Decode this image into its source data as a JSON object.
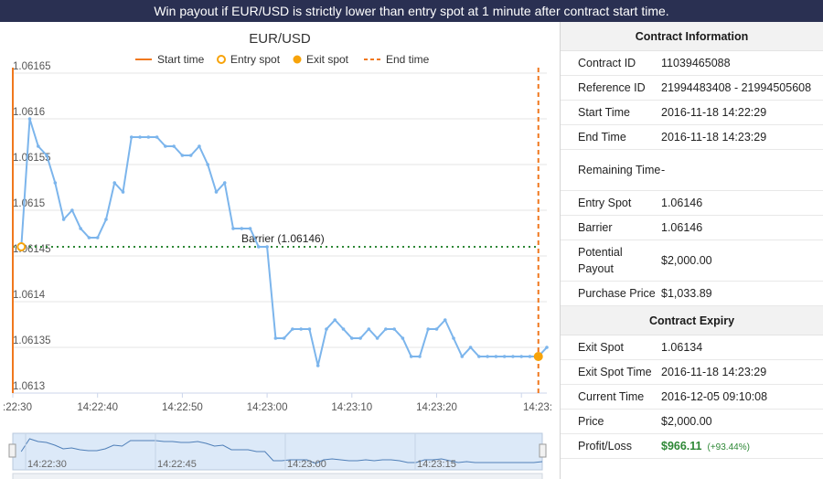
{
  "banner": {
    "text": "Win payout if EUR/USD is strictly lower than entry spot at 1 minute after contract start time."
  },
  "chart_data": {
    "type": "line",
    "title": "EUR/USD",
    "legend": [
      "Start time",
      "Entry spot",
      "Exit spot",
      "End time"
    ],
    "legend_position": "top",
    "xlabel": "",
    "ylabel": "",
    "x_tick_labels": [
      ":22:30",
      "14:22:40",
      "14:22:50",
      "14:23:00",
      "14:23:10",
      "14:23:20",
      "14:23:"
    ],
    "y_tick_labels": [
      "1.06165",
      "1.0616",
      "1.06155",
      "1.0615",
      "1.06145",
      "1.0614",
      "1.06135",
      "1.0613"
    ],
    "ylim": [
      1.0613,
      1.06165
    ],
    "xlim": [
      0,
      63
    ],
    "series": [
      {
        "x": [
          1,
          2,
          3,
          4,
          5,
          6,
          7,
          8,
          9,
          10,
          11,
          12,
          13,
          14,
          15,
          16,
          17,
          18,
          19,
          20,
          21,
          22,
          23,
          24,
          25,
          26,
          27,
          28,
          29,
          30,
          31,
          32,
          33,
          34,
          35,
          36,
          37,
          38,
          39,
          40,
          41,
          42,
          43,
          44,
          45,
          46,
          47,
          48,
          49,
          50,
          51,
          52,
          53,
          54,
          55,
          56,
          57,
          58,
          59,
          60,
          61,
          62,
          63
        ],
        "y": [
          1.06146,
          1.0616,
          1.06157,
          1.06156,
          1.06153,
          1.06149,
          1.0615,
          1.06148,
          1.06147,
          1.06147,
          1.06149,
          1.06153,
          1.06152,
          1.06158,
          1.06158,
          1.06158,
          1.06158,
          1.06157,
          1.06157,
          1.06156,
          1.06156,
          1.06157,
          1.06155,
          1.06152,
          1.06153,
          1.06148,
          1.06148,
          1.06148,
          1.06146,
          1.06146,
          1.06136,
          1.06136,
          1.06137,
          1.06137,
          1.06137,
          1.06133,
          1.06137,
          1.06138,
          1.06137,
          1.06136,
          1.06136,
          1.06137,
          1.06136,
          1.06137,
          1.06137,
          1.06136,
          1.06134,
          1.06134,
          1.06137,
          1.06137,
          1.06138,
          1.06136,
          1.06134,
          1.06135,
          1.06134,
          1.06134,
          1.06134,
          1.06134,
          1.06134,
          1.06134,
          1.06134,
          1.06134,
          1.06135
        ]
      }
    ],
    "start_time_x": 0,
    "end_time_x": 62,
    "entry_spot": {
      "x": 1,
      "y": 1.06146
    },
    "exit_spot": {
      "x": 62,
      "y": 1.06134
    },
    "barrier": {
      "value": 1.06146,
      "label": "Barrier (1.06146)"
    },
    "navigator_labels": [
      "14:22:30",
      "14:22:45",
      "14:23:00",
      "14:23:15"
    ],
    "grid": true
  },
  "colors": {
    "line": "#7cb5ec",
    "start_end": "#f0781e",
    "spot": "#f7a30a",
    "barrier": "#2e8836",
    "banner": "#2a3052"
  },
  "contract_info": {
    "title": "Contract Information",
    "rows": [
      {
        "label": "Contract ID",
        "value": "11039465088"
      },
      {
        "label": "Reference ID",
        "value": "21994483408 - 21994505608"
      },
      {
        "label": "Start Time",
        "value": "2016-11-18 14:22:29"
      },
      {
        "label": "End Time",
        "value": "2016-11-18 14:23:29"
      },
      {
        "label": "Remaining Time",
        "value": "-"
      },
      {
        "label": "Entry Spot",
        "value": "1.06146"
      },
      {
        "label": "Barrier",
        "value": "1.06146"
      },
      {
        "label": "Potential Payout",
        "value": "$2,000.00"
      },
      {
        "label": "Purchase Price",
        "value": "$1,033.89"
      }
    ]
  },
  "contract_expiry": {
    "title": "Contract Expiry",
    "rows": [
      {
        "label": "Exit Spot",
        "value": "1.06134"
      },
      {
        "label": "Exit Spot Time",
        "value": "2016-11-18 14:23:29"
      },
      {
        "label": "Current Time",
        "value": "2016-12-05 09:10:08"
      },
      {
        "label": "Price",
        "value": "$2,000.00"
      }
    ],
    "profit_label": "Profit/Loss",
    "profit_value": "$966.11",
    "profit_pct": "(+93.44%)"
  }
}
